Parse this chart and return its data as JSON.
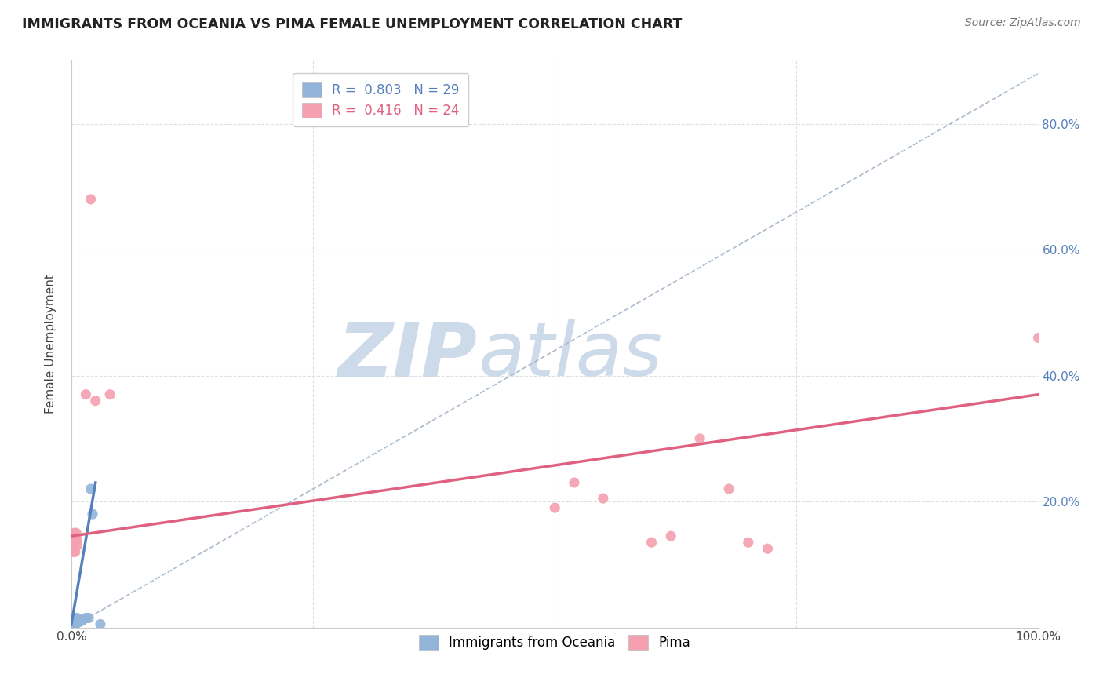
{
  "title": "IMMIGRANTS FROM OCEANIA VS PIMA FEMALE UNEMPLOYMENT CORRELATION CHART",
  "source": "Source: ZipAtlas.com",
  "ylabel": "Female Unemployment",
  "legend_blue_R": "0.803",
  "legend_blue_N": "29",
  "legend_pink_R": "0.416",
  "legend_pink_N": "24",
  "blue_color": "#92b4d8",
  "pink_color": "#f4a0b0",
  "blue_line_color": "#5580bb",
  "pink_line_color": "#e06080",
  "dash_line_color": "#aabbd0",
  "xlim": [
    0.0,
    1.0
  ],
  "ylim": [
    0.0,
    0.9
  ],
  "xtick_positions": [
    0.0,
    0.25,
    0.5,
    0.75,
    1.0
  ],
  "xtick_labels": [
    "0.0%",
    "",
    "",
    "",
    "100.0%"
  ],
  "ytick_positions": [
    0.0,
    0.2,
    0.4,
    0.6,
    0.8
  ],
  "ytick_labels_right": [
    "",
    "20.0%",
    "40.0%",
    "60.0%",
    "80.0%"
  ],
  "blue_scatter": [
    [
      0.001,
      0.005
    ],
    [
      0.001,
      0.01
    ],
    [
      0.002,
      0.005
    ],
    [
      0.002,
      0.008
    ],
    [
      0.003,
      0.005
    ],
    [
      0.003,
      0.008
    ],
    [
      0.003,
      0.01
    ],
    [
      0.003,
      0.012
    ],
    [
      0.004,
      0.005
    ],
    [
      0.004,
      0.008
    ],
    [
      0.004,
      0.01
    ],
    [
      0.004,
      0.012
    ],
    [
      0.005,
      0.006
    ],
    [
      0.005,
      0.01
    ],
    [
      0.005,
      0.012
    ],
    [
      0.006,
      0.008
    ],
    [
      0.006,
      0.012
    ],
    [
      0.006,
      0.015
    ],
    [
      0.007,
      0.008
    ],
    [
      0.007,
      0.012
    ],
    [
      0.008,
      0.01
    ],
    [
      0.009,
      0.012
    ],
    [
      0.01,
      0.01
    ],
    [
      0.012,
      0.012
    ],
    [
      0.015,
      0.015
    ],
    [
      0.018,
      0.015
    ],
    [
      0.02,
      0.22
    ],
    [
      0.022,
      0.18
    ],
    [
      0.03,
      0.005
    ]
  ],
  "pink_scatter": [
    [
      0.002,
      0.12
    ],
    [
      0.002,
      0.14
    ],
    [
      0.003,
      0.13
    ],
    [
      0.003,
      0.15
    ],
    [
      0.004,
      0.12
    ],
    [
      0.004,
      0.145
    ],
    [
      0.005,
      0.135
    ],
    [
      0.005,
      0.15
    ],
    [
      0.006,
      0.13
    ],
    [
      0.006,
      0.14
    ],
    [
      0.015,
      0.37
    ],
    [
      0.02,
      0.68
    ],
    [
      0.025,
      0.36
    ],
    [
      0.04,
      0.37
    ],
    [
      0.5,
      0.19
    ],
    [
      0.52,
      0.23
    ],
    [
      0.55,
      0.205
    ],
    [
      0.6,
      0.135
    ],
    [
      0.62,
      0.145
    ],
    [
      0.65,
      0.3
    ],
    [
      0.68,
      0.22
    ],
    [
      0.7,
      0.135
    ],
    [
      0.72,
      0.125
    ],
    [
      1.0,
      0.46
    ]
  ],
  "blue_line_x": [
    0.0,
    0.025
  ],
  "blue_line_y_start": 0.005,
  "blue_line_slope": 9.0,
  "dash_line_x": [
    0.0,
    1.0
  ],
  "dash_line_y": [
    0.0,
    0.88
  ],
  "pink_line_x": [
    0.0,
    1.0
  ],
  "pink_line_y": [
    0.145,
    0.37
  ],
  "watermark_zip": "ZIP",
  "watermark_atlas": "atlas",
  "watermark_color": "#cddaea",
  "background_color": "#ffffff",
  "grid_color": "#e0e0e0"
}
